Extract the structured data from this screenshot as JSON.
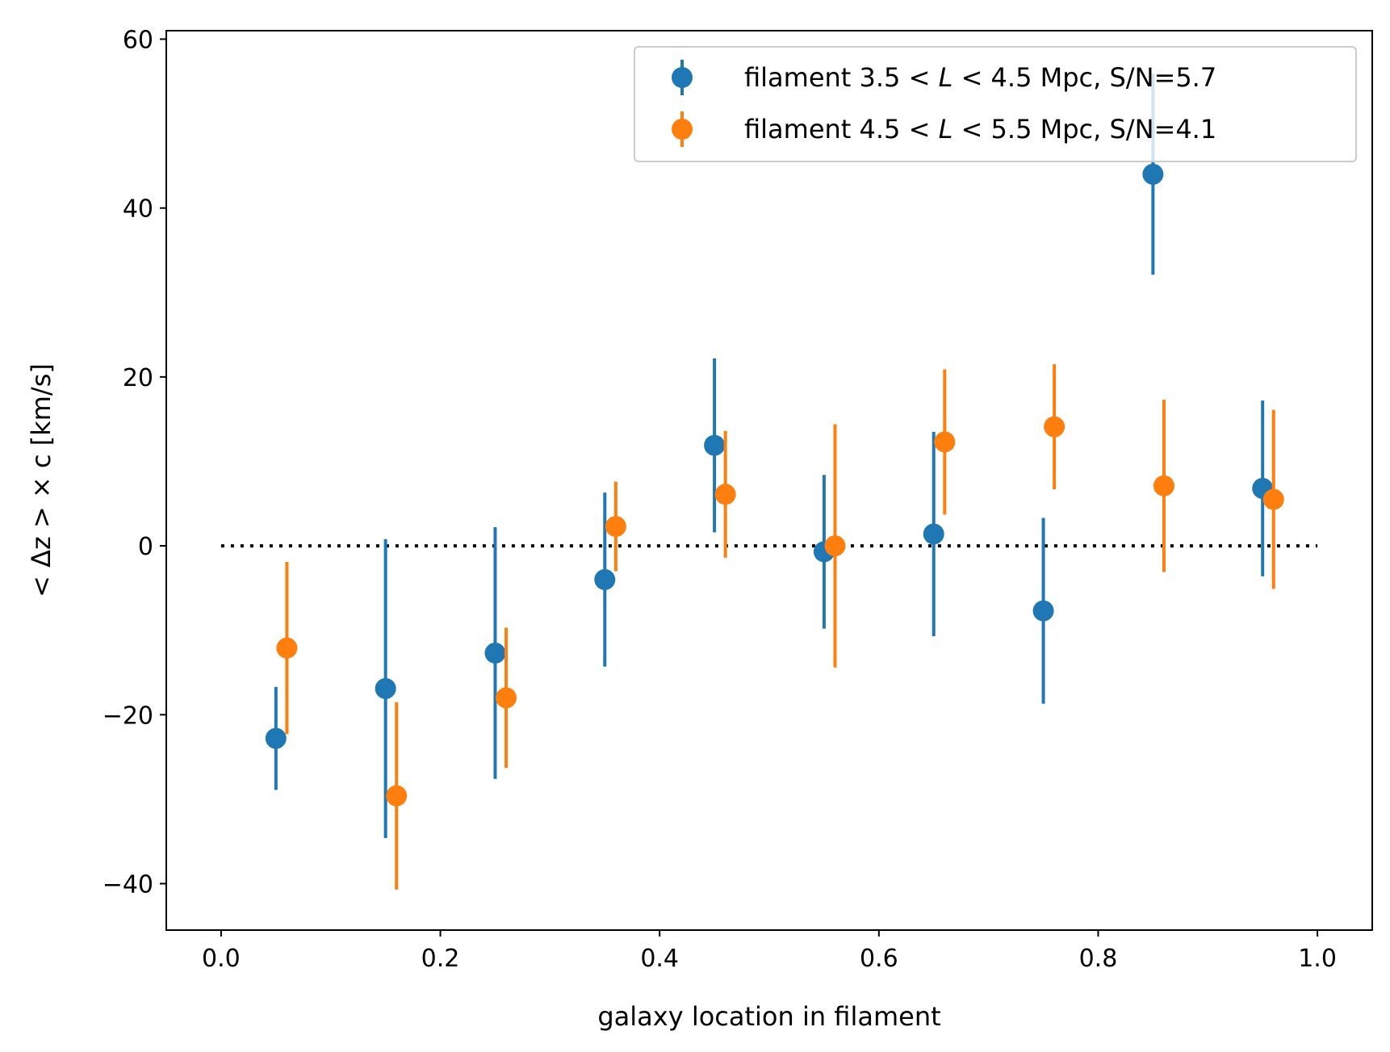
{
  "chart_data": {
    "type": "scatter",
    "xlabel": "galaxy location in filament",
    "ylabel": "< Δz > × c [km/s]",
    "xlim": [
      -0.05,
      1.05
    ],
    "ylim": [
      -45.5,
      61
    ],
    "x_ticks": [
      0.0,
      0.2,
      0.4,
      0.6,
      0.8,
      1.0
    ],
    "x_tick_labels": [
      "0.0",
      "0.2",
      "0.4",
      "0.6",
      "0.8",
      "1.0"
    ],
    "y_ticks": [
      -40,
      -20,
      0,
      20,
      40,
      60
    ],
    "y_tick_labels": [
      "−40",
      "−20",
      "0",
      "20",
      "40",
      "60"
    ],
    "reference_line": {
      "y": 0,
      "x_range": [
        0.0,
        1.0
      ],
      "style": "dotted",
      "color": "#000000"
    },
    "legend_position": "upper-right",
    "series": [
      {
        "name": "filament 3.5 < L < 4.5 Mpc, S/N=5.7",
        "legend_parts": [
          "filament 3.5",
          "<",
          "L",
          "<",
          "4.5 Mpc, S/N=5.7"
        ],
        "color": "#1f77b4",
        "x": [
          0.05,
          0.15,
          0.25,
          0.35,
          0.45,
          0.55,
          0.65,
          0.75,
          0.85,
          0.95
        ],
        "y": [
          -22.8,
          -16.9,
          -12.7,
          -4.0,
          11.9,
          -0.7,
          1.4,
          -7.7,
          44.0,
          6.8
        ],
        "err": [
          6.1,
          17.7,
          14.9,
          10.3,
          10.3,
          9.1,
          12.1,
          11.0,
          11.9,
          10.4
        ]
      },
      {
        "name": "filament 4.5 < L < 5.5 Mpc, S/N=4.1",
        "legend_parts": [
          "filament 4.5",
          "<",
          "L",
          "<",
          "5.5 Mpc, S/N=4.1"
        ],
        "color": "#ff7f0e",
        "x": [
          0.06,
          0.16,
          0.26,
          0.36,
          0.46,
          0.56,
          0.66,
          0.76,
          0.86,
          0.96
        ],
        "y": [
          -12.1,
          -29.6,
          -18.0,
          2.3,
          6.1,
          0.0,
          12.3,
          14.1,
          7.1,
          5.5
        ],
        "err": [
          10.2,
          11.1,
          8.3,
          5.3,
          7.5,
          14.4,
          8.6,
          7.4,
          10.2,
          10.6
        ]
      }
    ]
  }
}
